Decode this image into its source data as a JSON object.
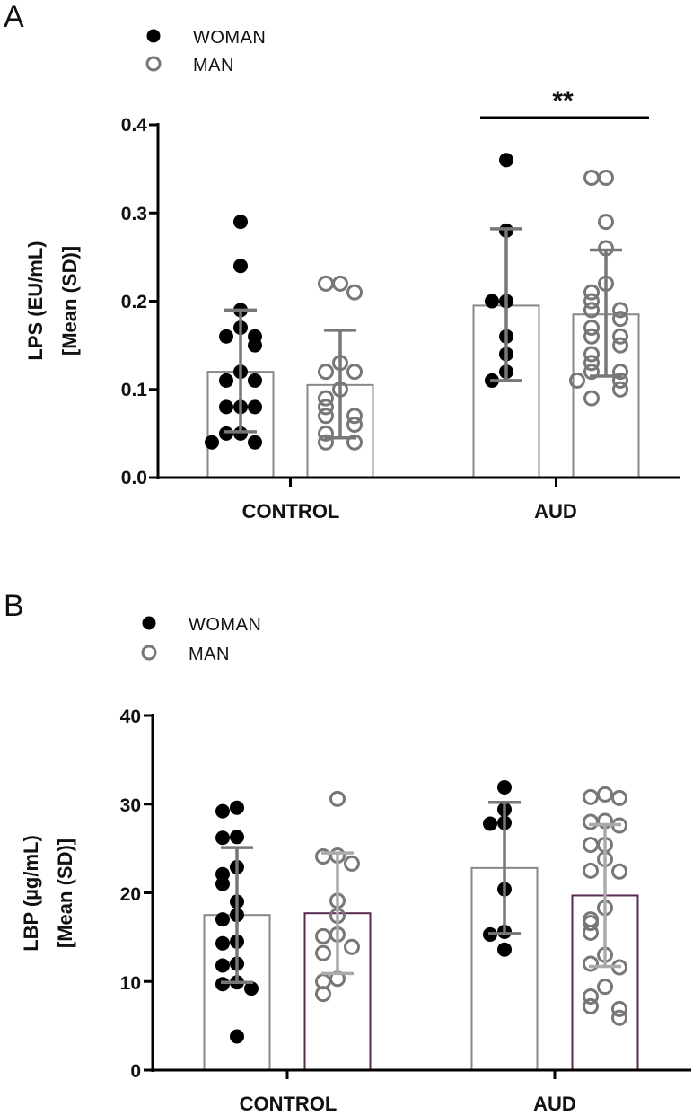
{
  "figure": {
    "panels": [
      "A",
      "B"
    ]
  },
  "chart_data": [
    {
      "type": "bar",
      "panel": "A",
      "title": "",
      "ylabel": [
        "LPS (EU/mL)",
        "[Mean (SD)]"
      ],
      "xlabel": "",
      "ylim": [
        0,
        0.4
      ],
      "yticks": [
        "0.0",
        "0.1",
        "0.2",
        "0.3",
        "0.4"
      ],
      "categories": [
        "CONTROL",
        "AUD"
      ],
      "legend": [
        {
          "name": "WOMAN",
          "marker": "filled-circle",
          "color": "#000000"
        },
        {
          "name": "MAN",
          "marker": "open-circle",
          "color": "#777777"
        }
      ],
      "series": [
        {
          "name": "WOMAN",
          "means": [
            0.12,
            0.195
          ],
          "sd_low": [
            0.052,
            0.11
          ],
          "sd_high": [
            0.19,
            0.282
          ],
          "points": [
            [
              0.29,
              0.24,
              0.19,
              0.17,
              0.16,
              0.16,
              0.15,
              0.12,
              0.11,
              0.11,
              0.08,
              0.08,
              0.08,
              0.05,
              0.05,
              0.04,
              0.04
            ],
            [
              0.36,
              0.28,
              0.2,
              0.2,
              0.16,
              0.14,
              0.12,
              0.11
            ]
          ]
        },
        {
          "name": "MAN",
          "means": [
            0.105,
            0.185
          ],
          "sd_low": [
            0.045,
            0.115
          ],
          "sd_high": [
            0.167,
            0.258
          ],
          "points": [
            [
              0.22,
              0.22,
              0.21,
              0.13,
              0.12,
              0.12,
              0.1,
              0.09,
              0.08,
              0.07,
              0.07,
              0.06,
              0.05,
              0.04,
              0.04
            ],
            [
              0.34,
              0.34,
              0.29,
              0.26,
              0.22,
              0.21,
              0.2,
              0.19,
              0.19,
              0.18,
              0.17,
              0.16,
              0.16,
              0.15,
              0.14,
              0.13,
              0.12,
              0.12,
              0.11,
              0.11,
              0.1,
              0.09
            ]
          ]
        }
      ],
      "significance": {
        "label": "**",
        "over": "AUD"
      }
    },
    {
      "type": "bar",
      "panel": "B",
      "title": "",
      "ylabel": [
        "LBP (µg/mL)",
        "[Mean (SD)]"
      ],
      "xlabel": "",
      "ylim": [
        0,
        40
      ],
      "yticks": [
        "0",
        "10",
        "20",
        "30",
        "40"
      ],
      "categories": [
        "CONTROL",
        "AUD"
      ],
      "legend": [
        {
          "name": "WOMAN",
          "marker": "filled-circle",
          "color": "#000000"
        },
        {
          "name": "MAN",
          "marker": "open-circle",
          "color": "#777777"
        }
      ],
      "series": [
        {
          "name": "WOMAN",
          "means": [
            17.5,
            22.8
          ],
          "sd_low": [
            9.9,
            15.4
          ],
          "sd_high": [
            25.1,
            30.2
          ],
          "points": [
            [
              29.6,
              29.2,
              26.3,
              26.2,
              22.9,
              22.1,
              21.0,
              19.0,
              17.5,
              17.0,
              14.5,
              14.3,
              12.0,
              11.8,
              9.9,
              9.7,
              9.2,
              3.8
            ],
            [
              31.9,
              29.4,
              27.9,
              27.8,
              20.4,
              15.6,
              15.3,
              13.6
            ]
          ]
        },
        {
          "name": "MAN",
          "means": [
            17.7,
            19.7
          ],
          "sd_low": [
            10.9,
            11.7
          ],
          "sd_high": [
            24.5,
            27.7
          ],
          "points": [
            [
              30.6,
              24.2,
              24.1,
              23.3,
              19.1,
              17.4,
              15.3,
              15.1,
              13.9,
              13.2,
              10.3,
              10.0,
              8.6
            ],
            [
              31.1,
              30.8,
              30.7,
              28.1,
              28.0,
              27.6,
              25.4,
              25.4,
              23.8,
              22.5,
              22.4,
              18.3,
              17.0,
              16.6,
              15.5,
              13.0,
              12.0,
              11.6,
              9.4,
              8.3,
              7.2,
              6.9,
              5.9
            ]
          ]
        }
      ],
      "significance": null
    }
  ]
}
